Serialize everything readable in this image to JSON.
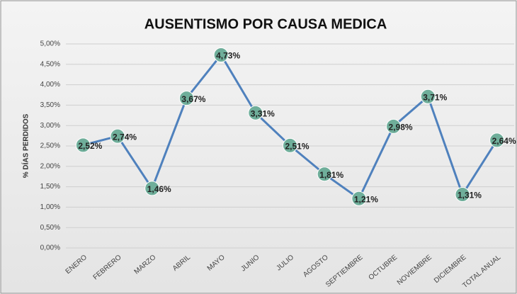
{
  "chart_data": {
    "type": "line",
    "title": "AUSENTISMO POR CAUSA MEDICA",
    "y_label": "% DÍAS PERDIDOS",
    "categories": [
      "ENERO",
      "FEBRERO",
      "MARZO",
      "ABRIL",
      "MAYO",
      "JUNIO",
      "JULIO",
      "AGOSTO",
      "SEPTIEMBRE",
      "OCTUBRE",
      "NOVIEMBRE",
      "DICIEMBRE",
      "TOTAL ANUAL"
    ],
    "values": [
      2.52,
      2.74,
      1.46,
      3.67,
      4.73,
      3.31,
      2.51,
      1.81,
      1.21,
      2.98,
      3.71,
      1.31,
      2.64
    ],
    "value_labels": [
      "2,52%",
      "2,74%",
      "1,46%",
      "3,67%",
      "4,73%",
      "3,31%",
      "2,51%",
      "1,81%",
      "1,21%",
      "2,98%",
      "3,71%",
      "1,31%",
      "2,64%"
    ],
    "color": "#4f81bd",
    "marker_color": "#6fae9a",
    "ylim": [
      0,
      5
    ],
    "yticks": [
      {
        "value": 0,
        "label": "0,00%"
      },
      {
        "value": 0.5,
        "label": "0,50%"
      },
      {
        "value": 1,
        "label": "1,00%"
      },
      {
        "value": 1.5,
        "label": "1,50%"
      },
      {
        "value": 2,
        "label": "2,00%"
      },
      {
        "value": 2.5,
        "label": "2,50%"
      },
      {
        "value": 3,
        "label": "3,00%"
      },
      {
        "value": 3.5,
        "label": "3,50%"
      },
      {
        "value": 4,
        "label": "4,00%"
      },
      {
        "value": 4.5,
        "label": "4,50%"
      },
      {
        "value": 5,
        "label": "5,00%"
      }
    ],
    "grid": true
  }
}
